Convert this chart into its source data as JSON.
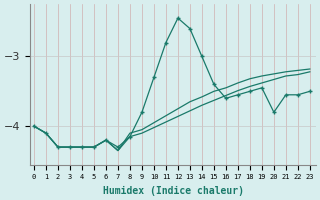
{
  "xlabel": "Humidex (Indice chaleur)",
  "x_values": [
    0,
    1,
    2,
    3,
    4,
    5,
    6,
    7,
    8,
    9,
    10,
    11,
    12,
    13,
    14,
    15,
    16,
    17,
    18,
    19,
    20,
    21,
    22,
    23
  ],
  "line1_y": [
    -4.0,
    -4.1,
    -4.3,
    -4.3,
    -4.3,
    -4.3,
    -4.2,
    -4.3,
    -4.15,
    -3.8,
    -3.3,
    -2.8,
    -2.45,
    -2.6,
    -3.0,
    -3.4,
    -3.6,
    -3.55,
    -3.5,
    -3.45,
    -3.8,
    -3.55,
    -3.55,
    -3.5
  ],
  "line2_y": [
    -4.0,
    -4.1,
    -4.3,
    -4.3,
    -4.3,
    -4.3,
    -4.2,
    -4.35,
    -4.1,
    -4.05,
    -3.95,
    -3.85,
    -3.75,
    -3.65,
    -3.58,
    -3.5,
    -3.45,
    -3.38,
    -3.32,
    -3.28,
    -3.25,
    -3.22,
    -3.2,
    -3.18
  ],
  "line3_y": [
    -4.0,
    -4.1,
    -4.3,
    -4.3,
    -4.3,
    -4.3,
    -4.2,
    -4.35,
    -4.15,
    -4.1,
    -4.02,
    -3.94,
    -3.86,
    -3.78,
    -3.7,
    -3.63,
    -3.56,
    -3.49,
    -3.43,
    -3.38,
    -3.33,
    -3.28,
    -3.26,
    -3.22
  ],
  "line_color": "#1a7a6a",
  "bg_color": "#d8eeee",
  "grid_color_v": "#c0d8d8",
  "grid_color_h": "#c8c8c8",
  "yticks": [
    -4,
    -3
  ],
  "ylim": [
    -4.55,
    -2.25
  ],
  "xlim": [
    -0.3,
    23.5
  ]
}
